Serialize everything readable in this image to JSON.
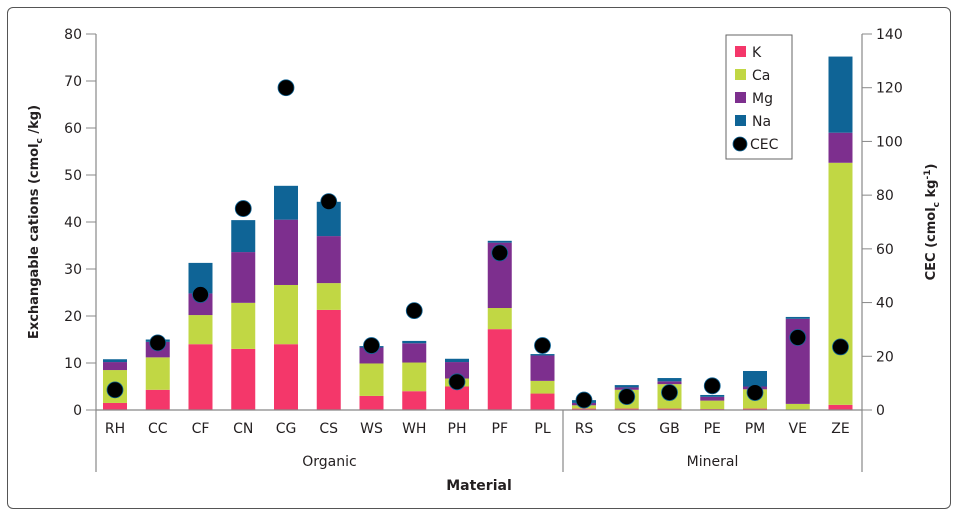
{
  "chart_data": {
    "type": "bar",
    "stacked": true,
    "xlabel": "Material",
    "ylabel": "Exchangable cations (cmol_c /kg)",
    "ylabel_parts": [
      "Exchangable cations (cmol",
      "c",
      " /kg)"
    ],
    "y2label": "CEC (cmol_c kg^-1)",
    "y2label_parts": [
      "CEC (cmol",
      "c",
      " kg",
      "-1",
      ")"
    ],
    "ylim": [
      0,
      80
    ],
    "yticks": [
      0,
      10,
      20,
      30,
      40,
      50,
      60,
      70,
      80
    ],
    "y2lim": [
      0,
      140
    ],
    "y2ticks": [
      0,
      20,
      40,
      60,
      80,
      100,
      120,
      140
    ],
    "grid": false,
    "legend_position": "top-right",
    "groups": [
      {
        "label": "Organic",
        "categories": [
          "RH",
          "CC",
          "CF",
          "CN",
          "CG",
          "CS",
          "WS",
          "WH",
          "PH",
          "PF",
          "PL"
        ]
      },
      {
        "label": "Mineral",
        "categories": [
          "RS",
          "CS",
          "GB",
          "PE",
          "PM",
          "VE",
          "ZE"
        ]
      }
    ],
    "categories": [
      "RH",
      "CC",
      "CF",
      "CN",
      "CG",
      "CS",
      "WS",
      "WH",
      "PH",
      "PF",
      "PL",
      "RS",
      "CS",
      "GB",
      "PE",
      "PM",
      "VE",
      "ZE"
    ],
    "series": [
      {
        "name": "K",
        "color": "#f4376a",
        "axis": "left",
        "values": [
          1.5,
          4.3,
          14.0,
          13.0,
          14.0,
          21.3,
          3.0,
          4.0,
          5.0,
          17.2,
          3.5,
          0.3,
          0.3,
          0.3,
          0.2,
          0.3,
          0.0,
          1.1
        ]
      },
      {
        "name": "Ca",
        "color": "#c1d744",
        "axis": "left",
        "values": [
          7.0,
          6.9,
          6.2,
          9.8,
          12.6,
          5.7,
          6.9,
          6.1,
          1.7,
          4.5,
          2.7,
          0.7,
          4.0,
          5.2,
          1.8,
          4.1,
          1.3,
          51.5
        ]
      },
      {
        "name": "Mg",
        "color": "#7d2f8e",
        "axis": "left",
        "values": [
          1.7,
          3.3,
          4.6,
          10.8,
          13.9,
          10.0,
          3.4,
          4.1,
          3.5,
          13.9,
          5.4,
          0.5,
          0.5,
          0.6,
          0.8,
          0.6,
          18.1,
          6.4
        ]
      },
      {
        "name": "Na",
        "color": "#0f6496",
        "axis": "left",
        "values": [
          0.6,
          0.5,
          6.5,
          6.8,
          7.2,
          7.3,
          0.3,
          0.5,
          0.7,
          0.4,
          0.3,
          0.6,
          0.5,
          0.7,
          0.4,
          3.3,
          0.4,
          16.2
        ]
      }
    ],
    "cec": {
      "name": "CEC",
      "color": "#000000",
      "axis": "right",
      "values": [
        7.5,
        25,
        43,
        75,
        120,
        77.6,
        24,
        37,
        10.5,
        58.5,
        24,
        3.7,
        5,
        6.5,
        9,
        6.5,
        27,
        23.5
      ]
    }
  }
}
